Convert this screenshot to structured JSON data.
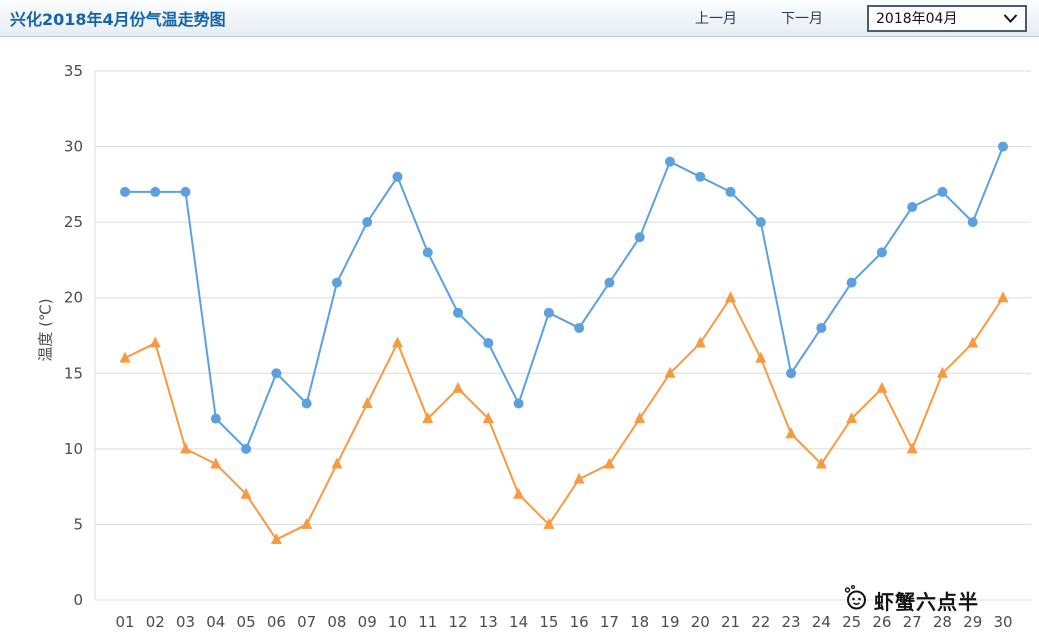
{
  "header": {
    "title": "兴化2018年4月份气温走势图",
    "prev_month_label": "上一月",
    "next_month_label": "下一月",
    "month_select_value": "2018年04月"
  },
  "icons": {
    "month_select_chevron": "chevron-down-icon",
    "watermark_logo": "shrimp-face-icon"
  },
  "watermark": {
    "text": "虾蟹六点半"
  },
  "chart_data": {
    "type": "line",
    "title": "兴化2018年4月份气温走势图",
    "xlabel": "",
    "ylabel": "温度 (℃)",
    "ylim": [
      0,
      35
    ],
    "ytick_step": 5,
    "grid": true,
    "legend": false,
    "categories": [
      "01",
      "02",
      "03",
      "04",
      "05",
      "06",
      "07",
      "08",
      "09",
      "10",
      "11",
      "12",
      "13",
      "14",
      "15",
      "16",
      "17",
      "18",
      "19",
      "20",
      "21",
      "22",
      "23",
      "24",
      "25",
      "26",
      "27",
      "28",
      "29",
      "30"
    ],
    "series": [
      {
        "id": "high",
        "marker": "circle",
        "color": "#5ca1de",
        "values": [
          27,
          27,
          27,
          12,
          10,
          15,
          13,
          21,
          25,
          28,
          23,
          19,
          17,
          13,
          19,
          18,
          21,
          24,
          29,
          28,
          27,
          25,
          15,
          18,
          21,
          23,
          26,
          27,
          25,
          30
        ]
      },
      {
        "id": "low",
        "marker": "triangle",
        "color": "#f79a40",
        "values": [
          16,
          17,
          10,
          9,
          7,
          4,
          5,
          9,
          13,
          17,
          12,
          14,
          12,
          7,
          5,
          8,
          9,
          12,
          15,
          17,
          20,
          16,
          11,
          9,
          12,
          14,
          10,
          15,
          17,
          20
        ]
      }
    ]
  }
}
